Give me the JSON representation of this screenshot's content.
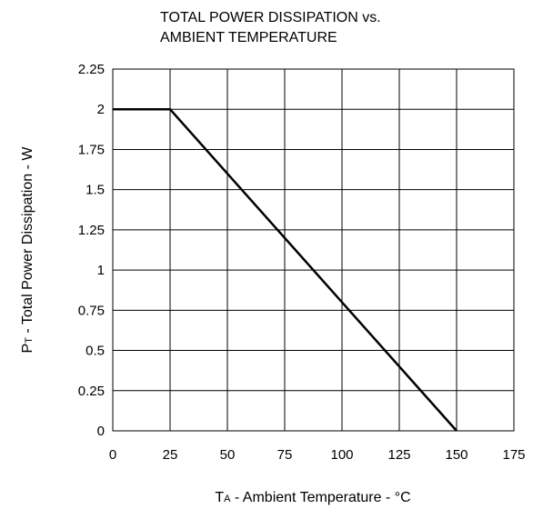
{
  "chart_data": {
    "type": "line",
    "title_lines": [
      "TOTAL POWER DISSIPATION vs.",
      "AMBIENT TEMPERATURE"
    ],
    "xlabel": {
      "symbol": "T",
      "subscript": "A",
      "text": " - Ambient Temperature - °C"
    },
    "ylabel": {
      "symbol": "P",
      "subscript": "T",
      "text": " - Total Power Dissipation - W"
    },
    "xlim": [
      0,
      175
    ],
    "ylim": [
      0,
      2.25
    ],
    "xticks": [
      "0",
      "25",
      "50",
      "75",
      "100",
      "125",
      "150",
      "175"
    ],
    "yticks": [
      "0",
      "0.25",
      "0.5",
      "0.75",
      "1",
      "1.25",
      "1.5",
      "1.75",
      "2",
      "2.25"
    ],
    "grid": true,
    "legend": "none",
    "series": [
      {
        "x": [
          0,
          25,
          150
        ],
        "y": [
          2,
          2,
          0
        ]
      }
    ],
    "colors": {
      "line": "#000000",
      "grid": "#000000",
      "frame": "#000000"
    }
  }
}
